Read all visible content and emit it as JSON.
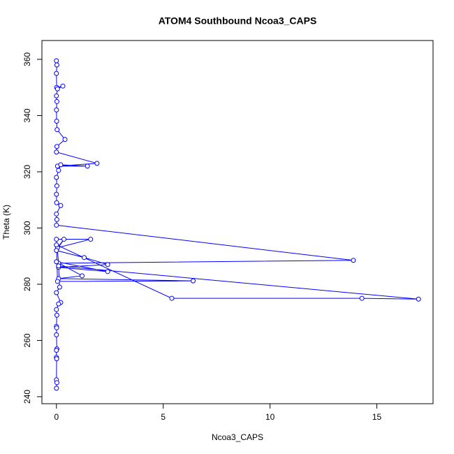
{
  "chart_data": {
    "type": "line",
    "title": "ATOM4 Southbound Ncoa3_CAPS",
    "x_label": "Ncoa3_CAPS",
    "y_label": "Theta (K)",
    "series": [
      {
        "color": "#0000ff",
        "x": [
          0,
          0.02,
          0,
          0.01,
          0.3,
          0.05,
          0,
          0.02,
          0,
          0.01,
          0.03,
          0.4,
          0.02,
          0,
          1.9,
          0.05,
          1.45,
          0.2,
          0.1,
          0,
          0.02,
          0,
          0.01,
          0.2,
          0,
          0.02,
          0,
          13.9,
          0.1,
          0,
          1.6,
          0.05,
          0.35,
          0,
          1.3,
          2.4,
          0.1,
          2.4,
          0,
          1.2,
          0.1,
          6.4,
          0.05,
          0,
          5.4,
          14.3,
          16.95,
          0.1,
          0.15,
          0,
          0.2,
          0.1,
          0,
          0.02,
          0,
          0.01,
          0,
          0.02,
          0,
          0,
          0.01,
          0,
          0.02,
          0
        ],
        "values": [
          359.5,
          358,
          355,
          350,
          350.5,
          349.5,
          347,
          345,
          342,
          338,
          335,
          331.5,
          329,
          327,
          323,
          322,
          322,
          322.5,
          320.5,
          318,
          315,
          312,
          309,
          308,
          305,
          303,
          301,
          288.5,
          287.5,
          296,
          296,
          293,
          296,
          292,
          289.5,
          287,
          286,
          284.5,
          288,
          283,
          282,
          281.2,
          281,
          294,
          275,
          275,
          274.7,
          286.5,
          279,
          277,
          273.5,
          273,
          271,
          269,
          265,
          264.5,
          262,
          257,
          256.5,
          254,
          253.5,
          246,
          245,
          243
        ]
      }
    ],
    "xlim": [
      -0.68,
      17.63
    ],
    "ylim": [
      237.5,
      366.7
    ],
    "xticks": [
      0,
      5,
      10,
      15
    ],
    "yticks": [
      240,
      260,
      280,
      300,
      320,
      340,
      360
    ]
  }
}
